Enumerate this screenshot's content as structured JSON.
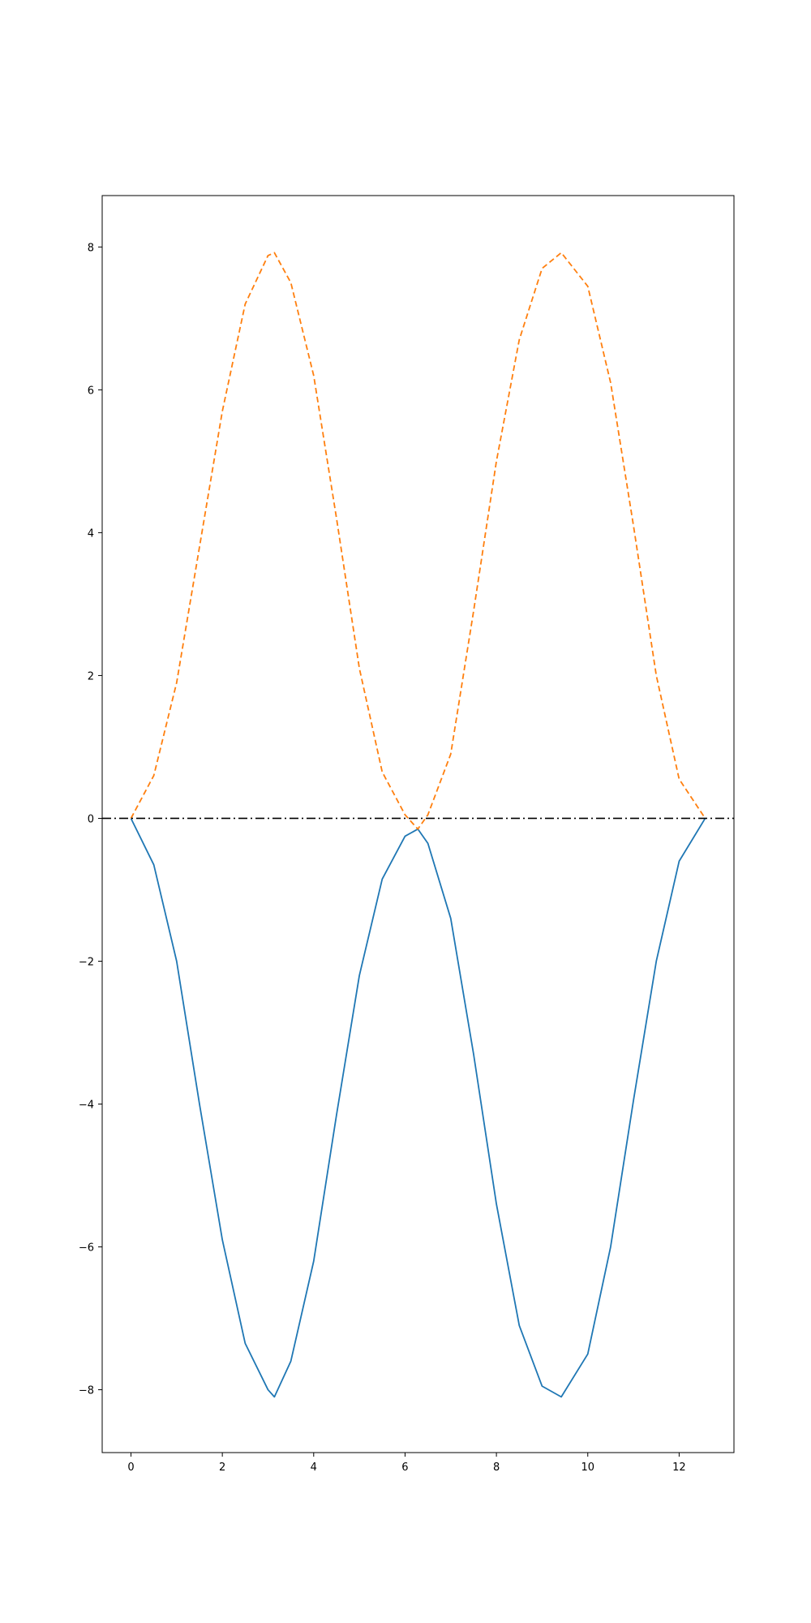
{
  "chart_data": {
    "type": "line",
    "title": "",
    "xlabel": "",
    "ylabel": "",
    "xlim": [
      -0.63,
      13.2
    ],
    "ylim": [
      -8.88,
      8.72
    ],
    "grid": false,
    "x_ticks": [
      0,
      2,
      4,
      6,
      8,
      10,
      12
    ],
    "x_tick_labels": [
      "0",
      "2",
      "4",
      "6",
      "8",
      "10",
      "12"
    ],
    "y_ticks": [
      -8,
      -6,
      -4,
      -2,
      0,
      2,
      4,
      6,
      8
    ],
    "y_tick_labels": [
      "−8",
      "−6",
      "−4",
      "−2",
      "0",
      "2",
      "4",
      "6",
      "8"
    ],
    "series": [
      {
        "style": "solid",
        "color": "#1f77b4",
        "x": [
          0,
          0.5,
          1,
          1.5,
          2,
          2.5,
          3,
          3.14,
          3.5,
          4,
          4.5,
          5,
          5.5,
          6,
          6.28,
          6.5,
          7,
          7.5,
          8,
          8.5,
          9,
          9.42,
          10,
          10.5,
          11,
          11.5,
          12,
          12.57
        ],
        "y": [
          0,
          -0.65,
          -2.0,
          -4.0,
          -5.9,
          -7.35,
          -8.0,
          -8.1,
          -7.6,
          -6.2,
          -4.15,
          -2.2,
          -0.85,
          -0.25,
          -0.15,
          -0.35,
          -1.4,
          -3.3,
          -5.4,
          -7.1,
          -7.95,
          -8.1,
          -7.5,
          -6.0,
          -3.95,
          -2.0,
          -0.6,
          0
        ]
      },
      {
        "style": "dashed",
        "color": "#ff7f0e",
        "x": [
          0,
          0.5,
          1,
          1.5,
          2,
          2.5,
          3,
          3.14,
          3.5,
          4,
          4.5,
          5,
          5.5,
          6,
          6.28,
          6.5,
          7,
          7.5,
          8,
          8.5,
          9,
          9.42,
          10,
          10.5,
          11,
          11.5,
          12,
          12.57
        ],
        "y": [
          0,
          0.6,
          1.9,
          3.8,
          5.7,
          7.2,
          7.88,
          7.92,
          7.5,
          6.2,
          4.2,
          2.1,
          0.65,
          0.05,
          -0.15,
          0.05,
          0.9,
          2.9,
          5.0,
          6.7,
          7.7,
          7.92,
          7.45,
          6.1,
          4.1,
          2.0,
          0.55,
          0
        ]
      },
      {
        "style": "dashdot",
        "color": "#000000",
        "x": [
          -0.63,
          13.2
        ],
        "y": [
          0,
          0
        ]
      }
    ]
  }
}
